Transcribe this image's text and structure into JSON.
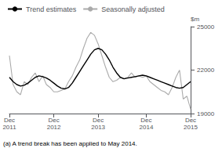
{
  "chart_data": {
    "type": "line",
    "ylabel": "$m",
    "footnote": "(a) A trend break has been applied to May 2014.",
    "categories": [
      "Dec\n2011",
      null,
      null,
      null,
      null,
      null,
      null,
      null,
      null,
      null,
      null,
      null,
      "Dec\n2012",
      null,
      null,
      null,
      null,
      null,
      null,
      null,
      null,
      null,
      null,
      null,
      "Dec\n2013",
      null,
      null,
      null,
      null,
      null,
      null,
      null,
      null,
      null,
      null,
      null,
      null,
      "Dec\n2014",
      null,
      null,
      null,
      null,
      null,
      null,
      null,
      null,
      null,
      null,
      null,
      "Dec\n2015"
    ],
    "series": [
      {
        "name": "Trend estimates",
        "color": "#000000",
        "values": [
          21500,
          21200,
          21000,
          20900,
          20950,
          21100,
          21300,
          21500,
          21600,
          21550,
          21450,
          21300,
          21100,
          20900,
          20750,
          20700,
          20800,
          21100,
          21500,
          21900,
          22300,
          22700,
          23100,
          23400,
          23500,
          23400,
          23100,
          22700,
          22200,
          21800,
          21500,
          21400,
          21450,
          21500,
          21550,
          21600,
          21650,
          21600,
          21500,
          21400,
          21300,
          21200,
          21100,
          21000,
          20900,
          20800,
          20750,
          20800,
          21000,
          21200
        ]
      },
      {
        "name": "Seasonally adjusted",
        "color": "#aaaaaa",
        "values": [
          23000,
          21000,
          20500,
          20300,
          21200,
          21000,
          21500,
          21800,
          21200,
          21600,
          21000,
          20800,
          20500,
          20500,
          20600,
          20700,
          21200,
          21600,
          22200,
          22700,
          23500,
          24200,
          24600,
          24400,
          23800,
          23000,
          22200,
          21500,
          21200,
          21300,
          21500,
          21400,
          21500,
          21800,
          21500,
          21600,
          21500,
          21600,
          21200,
          21000,
          20800,
          20600,
          20500,
          20300,
          20800,
          21500,
          22000,
          20000,
          20200,
          19300
        ]
      }
    ],
    "ylim": [
      19000,
      25000
    ],
    "yticks": [
      19000,
      22000,
      25000
    ],
    "grid": false,
    "legend": "upper left"
  }
}
